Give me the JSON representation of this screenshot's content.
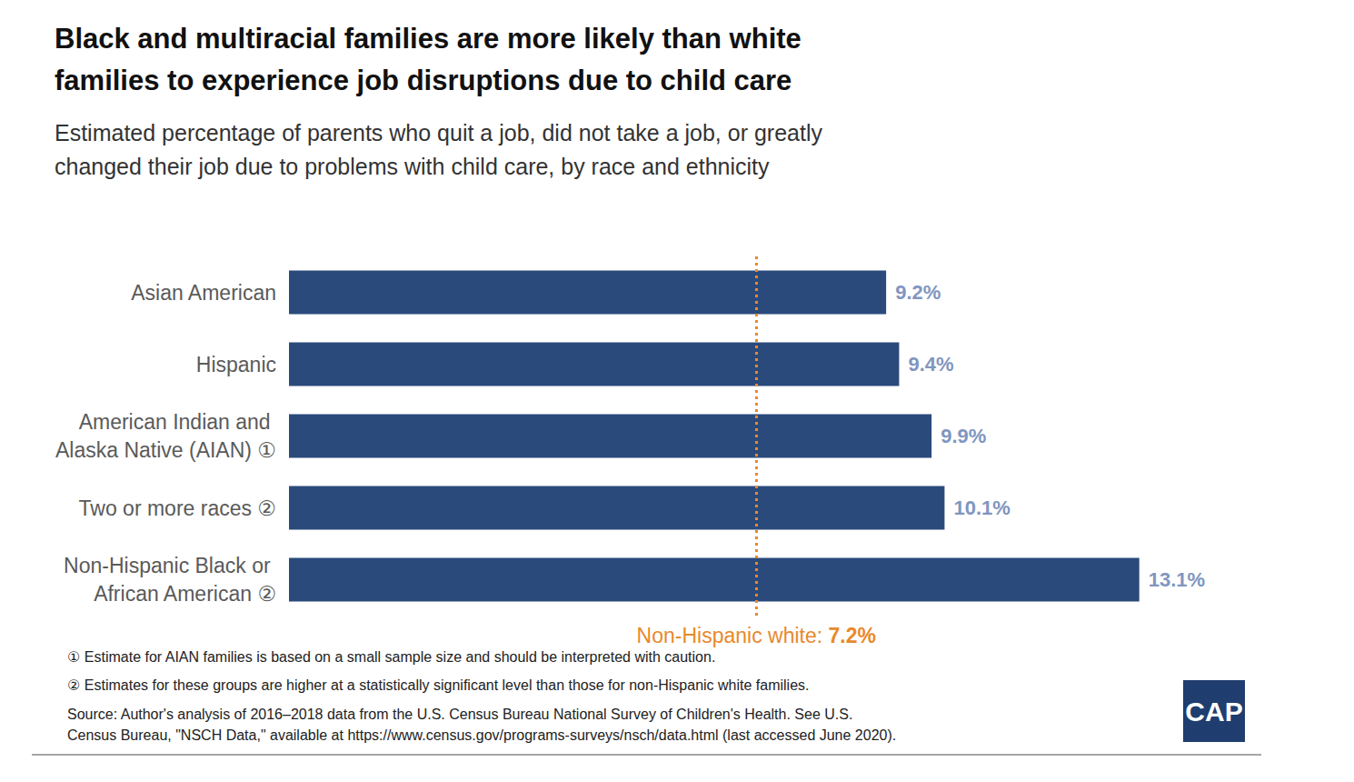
{
  "chart_data": {
    "type": "bar",
    "orientation": "horizontal",
    "title": "Black and multiracial families are more likely than white families to experience job disruptions due to child care",
    "subtitle": "Estimated percentage of parents who quit a job, did not take a job, or greatly changed their job due to problems with child care, by race and ethnicity",
    "categories": [
      "Asian American",
      "Hispanic",
      "American Indian and Alaska Native (AIAN) ①",
      "Two or more races ②",
      "Non-Hispanic Black or African American ②"
    ],
    "values": [
      9.2,
      9.4,
      9.9,
      10.1,
      13.1
    ],
    "value_labels": [
      "9.2%",
      "9.4%",
      "9.9%",
      "10.1%",
      "13.1%"
    ],
    "data_labels": true,
    "color": "#2b4a7c",
    "xlim": [
      0,
      14
    ],
    "tick_labels": false,
    "grid": false,
    "reference_line": {
      "label": "Non-Hispanic white:",
      "value": 7.2,
      "value_label": "7.2%",
      "color": "#e8892b"
    },
    "notes": [
      "① Estimate for AIAN families is based on a small sample size and should be interpreted with caution.",
      "② Estimates for these groups are higher at a statistically significant level than those for non-Hispanic white families."
    ],
    "source": "Source: Author's analysis of 2016–2018 data from the U.S. Census Bureau National Survey of Children's Health. See U.S. Census Bureau, \"NSCH Data,\" available at https://www.census.gov/programs-surveys/nsch/data.html (last accessed June 2020).",
    "logo": "CAP"
  }
}
